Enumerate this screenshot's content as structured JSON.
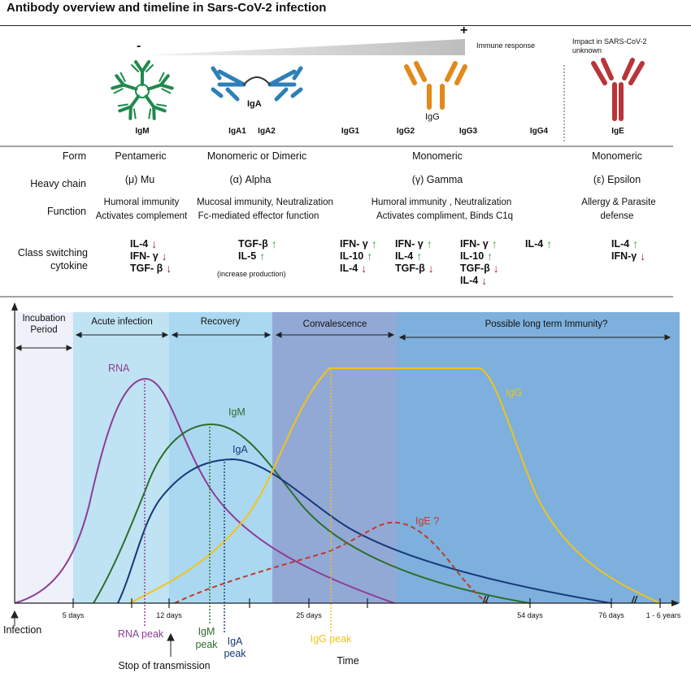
{
  "title": "Antibody overview and timeline in Sars-CoV-2 infection",
  "gradient": {
    "minus": "-",
    "plus": "+",
    "label": "Immune response"
  },
  "ige_note": "Impact in SARS-CoV-2 unknown",
  "antibodies": {
    "iga_label": "IgA",
    "igg_label": "IgG",
    "classes": [
      "IgM",
      "IgA1",
      "IgA2",
      "IgG1",
      "IgG2",
      "IgG3",
      "IgG4",
      "IgE"
    ]
  },
  "row_labels": {
    "form": "Form",
    "heavy_chain": "Heavy chain",
    "function": "Function",
    "class_switching": [
      "Class switching",
      "cytokine"
    ]
  },
  "form": {
    "igm": "Pentameric",
    "iga": "Monomeric or  Dimeric",
    "igg": "Monomeric",
    "ige": "Monomeric"
  },
  "heavy_chain": {
    "igm": "(μ) Mu",
    "iga": "(α) Alpha",
    "igg": "(γ) Gamma",
    "ige": "(ε) Epsilon"
  },
  "function": {
    "igm": [
      "Humoral immunity",
      "Activates complement"
    ],
    "iga": [
      "Mucosal immunity,  Neutralization",
      "Fc-mediated effector function"
    ],
    "igg": [
      "Humoral immunity , Neutralization",
      "Activates compliment, Binds C1q"
    ],
    "ige": [
      "Allergy  & Parasite",
      "defense"
    ]
  },
  "cytokines": {
    "igm": [
      {
        "name": "IL-4",
        "dir": "down"
      },
      {
        "name": "IFN- γ",
        "dir": "down"
      },
      {
        "name": "TGF- β",
        "dir": "down"
      }
    ],
    "iga": [
      {
        "name": "TGF-β",
        "dir": "up"
      },
      {
        "name": "IL-5",
        "dir": "up"
      }
    ],
    "iga_note": "(increase production)",
    "igg1": [
      {
        "name": "IFN- γ",
        "dir": "up"
      },
      {
        "name": "IL-10",
        "dir": "up"
      },
      {
        "name": "IL-4",
        "dir": "down"
      }
    ],
    "igg2": [
      {
        "name": "IFN- γ",
        "dir": "up"
      },
      {
        "name": "IL-4",
        "dir": "up"
      },
      {
        "name": "TGF-β",
        "dir": "down"
      }
    ],
    "igg3": [
      {
        "name": "IFN- γ",
        "dir": "up"
      },
      {
        "name": "IL-10",
        "dir": "up"
      },
      {
        "name": "TGF-β",
        "dir": "down"
      },
      {
        "name": "IL-4",
        "dir": "down"
      }
    ],
    "igg4": [
      {
        "name": "IL-4",
        "dir": "up"
      }
    ],
    "ige": [
      {
        "name": "IL-4",
        "dir": "up"
      },
      {
        "name": "IFN-γ",
        "dir": "down"
      }
    ]
  },
  "arrow_glyphs": {
    "up": "↑",
    "down": "↓"
  },
  "timeline": {
    "phases": [
      "Incubation Period",
      "Acute infection",
      "Recovery",
      "Convalescence",
      "Possible long term Immunity?"
    ],
    "phase_colors": [
      "#eef1fa",
      "#bfe3f3",
      "#aad8f1",
      "#92a9d6",
      "#7db0dc"
    ],
    "curves": {
      "rna": "RNA",
      "igm": "IgM",
      "iga": "IgA",
      "igg": "IgG",
      "ige": "IgE ?"
    },
    "curve_colors": {
      "rna": "#8e3c95",
      "igm": "#2c6e2c",
      "iga": "#17387a",
      "igg": "#f3c319",
      "ige": "#c0392b"
    },
    "ticks": [
      "5 days",
      "12 days",
      "25 days",
      "54 days",
      "76 days",
      "1 - 6 years"
    ],
    "break_mark": "//",
    "infection": "Infection",
    "rna_peak": "RNA  peak",
    "igm_peak": [
      "IgM",
      "peak"
    ],
    "iga_peak": [
      "IgA",
      "peak"
    ],
    "igg_peak": "IgG peak",
    "stop": "Stop of transmission",
    "xlabel": "Time"
  }
}
